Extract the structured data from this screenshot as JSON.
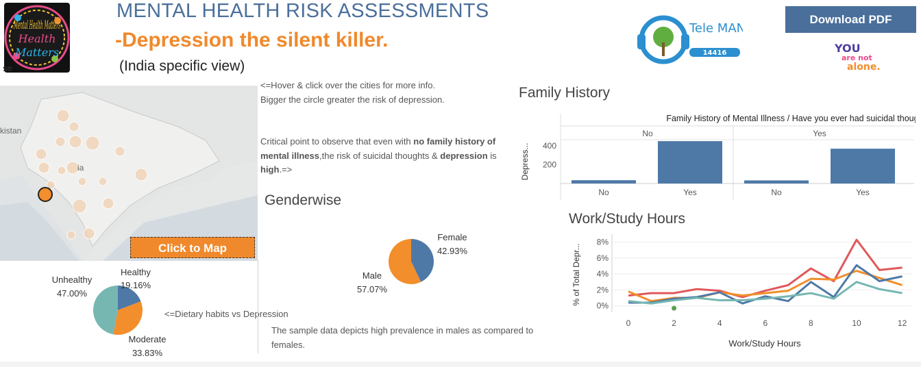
{
  "header": {
    "title": "MENTAL HEALTH RISK ASSESSMENTS",
    "subtitle": "-Depression the silent killer.",
    "view": "(India specific view)",
    "download_label": "Download PDF"
  },
  "logos": {
    "mental_health": "Mental Health Matters",
    "tele_manas": "Tele MANAS",
    "tele_manas_number": "14416",
    "you_are_not_alone": "YOU are not alone."
  },
  "map": {
    "cut_label_left": "se",
    "country_label_pakistan": "kistan",
    "country_label_india": "ia",
    "button_label": "Click to Map"
  },
  "notes": {
    "hover_line1": "<=Hover & click over the cities for more info.",
    "hover_line2": "Bigger the circle greater the risk of depression.",
    "critical_line1_a": "Critical point to observe that even with ",
    "critical_line1_b": "no family history of",
    "critical_line2_a": "mental illness",
    "critical_line2_b": ",the risk of suicidal thoughts & ",
    "critical_line2_c": "depression",
    "critical_line2_d": " is",
    "critical_line3_a": "high",
    "critical_line3_b": ".=>",
    "dietary": "<=Dietary habits vs Depression",
    "gender_line1": "The sample data depicts high prevalence in males as compared to",
    "gender_line2": "females."
  },
  "colors": {
    "blue": "#4e79a7",
    "orange": "#f28e2b",
    "teal": "#76b7b2",
    "red": "#e15759",
    "title_blue": "#4a6f9b",
    "title_orange": "#f0892b"
  },
  "chart_data": [
    {
      "id": "diet",
      "type": "pie",
      "categories": [
        "Healthy",
        "Moderate",
        "Unhealthy"
      ],
      "values": [
        19.16,
        33.83,
        47.0
      ],
      "labels": [
        "19.16%",
        "33.83%",
        "47.00%"
      ]
    },
    {
      "id": "gender",
      "type": "pie",
      "title": "Genderwise",
      "categories": [
        "Female",
        "Male"
      ],
      "values": [
        42.93,
        57.07
      ],
      "labels": [
        "42.93%",
        "57.07%"
      ]
    },
    {
      "id": "family",
      "type": "bar",
      "title": "Family History",
      "header": "Family History of Mental Illness / Have you ever had suicidal thoughts ?",
      "panels": [
        "No",
        "Yes"
      ],
      "categories": [
        "No",
        "Yes"
      ],
      "series": [
        {
          "panel": "No",
          "values": [
            35,
            450
          ]
        },
        {
          "panel": "Yes",
          "values": [
            33,
            370
          ]
        }
      ],
      "ylabel": "Depress...",
      "yticks": [
        200,
        400
      ],
      "ylim": [
        0,
        480
      ]
    },
    {
      "id": "work",
      "type": "line",
      "title": "Work/Study Hours",
      "xlabel": "Work/Study Hours",
      "ylabel": "% of Total Depr...",
      "x": [
        0,
        1,
        2,
        3,
        4,
        5,
        6,
        7,
        8,
        9,
        10,
        11,
        12
      ],
      "xticks": [
        0,
        2,
        4,
        6,
        8,
        10,
        12
      ],
      "ytick_labels": [
        "0%",
        "2%",
        "4%",
        "6%",
        "8%"
      ],
      "yticks": [
        0,
        2,
        4,
        6,
        8
      ],
      "ylim": [
        -0.8,
        9
      ],
      "series": [
        {
          "color": "red",
          "values": [
            1.3,
            1.6,
            1.6,
            2.1,
            1.9,
            1.1,
            1.9,
            2.6,
            4.7,
            3.1,
            8.3,
            4.5,
            4.8
          ]
        },
        {
          "color": "orange",
          "values": [
            1.8,
            0.6,
            1.0,
            1.0,
            1.7,
            1.3,
            1.6,
            1.9,
            3.4,
            3.3,
            4.4,
            3.5,
            2.6
          ]
        },
        {
          "color": "blue",
          "values": [
            0.4,
            0.4,
            0.9,
            1.1,
            1.7,
            0.3,
            1.2,
            0.6,
            3.0,
            1.1,
            5.1,
            3.1,
            3.7
          ]
        },
        {
          "color": "teal",
          "values": [
            0.6,
            0.3,
            0.7,
            1.0,
            0.7,
            0.7,
            0.9,
            1.2,
            1.6,
            0.9,
            3.0,
            2.1,
            1.6
          ]
        }
      ],
      "marker": {
        "x": 2,
        "y": -0.3
      }
    }
  ]
}
